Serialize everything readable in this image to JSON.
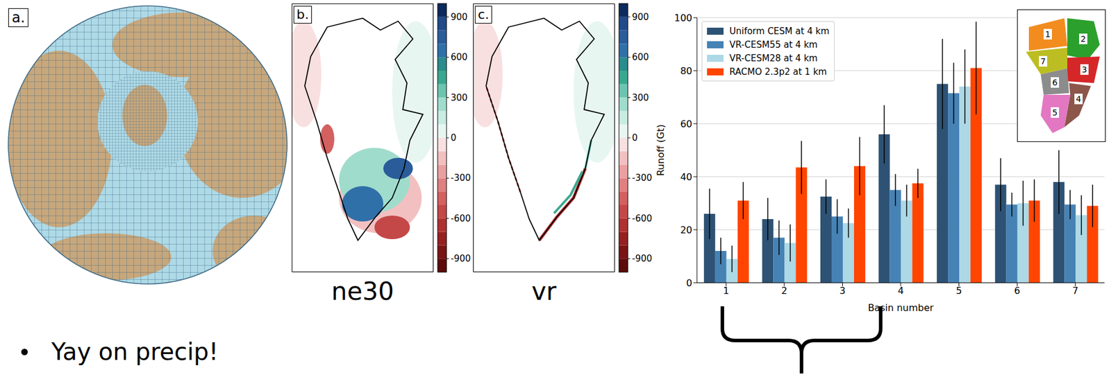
{
  "chart_data": [
    {
      "type": "mesh",
      "title": "a."
    },
    {
      "type": "map",
      "title": "b.",
      "subtitle": "ne30",
      "colorbar": {
        "range": [
          -1000,
          1000
        ],
        "ticks": [
          900,
          600,
          300,
          0,
          -300,
          -600,
          -900
        ]
      }
    },
    {
      "type": "map",
      "title": "c.",
      "subtitle": "vr",
      "colorbar": {
        "range": [
          -1000,
          1000
        ],
        "ticks": [
          900,
          600,
          300,
          0,
          -300,
          -600,
          -900
        ]
      }
    },
    {
      "type": "bar",
      "xlabel": "Basin number",
      "ylabel": "Runoff (Gt)",
      "categories": [
        "1",
        "2",
        "3",
        "4",
        "5",
        "6",
        "7"
      ],
      "series": [
        {
          "name": "Uniform CESM at 4 km",
          "color": "#2d5274",
          "values": [
            26,
            24,
            32.5,
            56,
            75,
            37,
            38
          ],
          "errors": [
            9.5,
            8,
            6.5,
            11,
            17,
            10,
            12
          ]
        },
        {
          "name": "VR-CESM55 at 4 km",
          "color": "#4682b4",
          "values": [
            12,
            17,
            25,
            35,
            71.5,
            29.5,
            29.5
          ],
          "errors": [
            5,
            6.5,
            6.5,
            6,
            11.5,
            4.5,
            5.5
          ]
        },
        {
          "name": "VR-CESM28 at 4 km",
          "color": "#add8e6",
          "values": [
            9,
            15,
            22.5,
            31,
            74,
            30,
            25.5
          ],
          "errors": [
            5,
            7,
            5.5,
            6,
            14,
            8.5,
            7.5
          ]
        },
        {
          "name": "RACMO 2.3p2 at 1 km",
          "color": "#ff4500",
          "values": [
            31,
            43.5,
            44,
            37.5,
            81,
            31,
            29
          ],
          "errors": [
            7,
            10,
            11,
            5.5,
            17.5,
            8,
            8
          ]
        }
      ],
      "ylim": [
        0,
        100
      ],
      "yticks": [
        0,
        20,
        40,
        60,
        80,
        100
      ],
      "grid": true,
      "legend": "upper left"
    }
  ],
  "bullets": [
    "Yay on precip!"
  ]
}
